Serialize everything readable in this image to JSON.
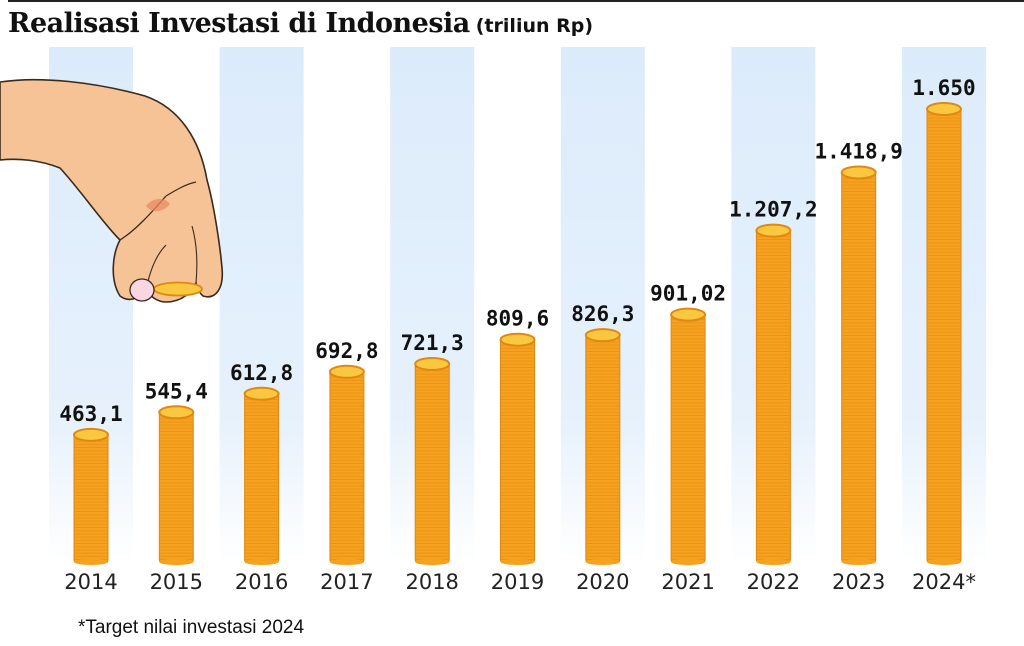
{
  "title": "Realisasi Investasi di Indonesia",
  "unit": "(triliun Rp)",
  "footnote": "*Target nilai investasi 2024",
  "colors": {
    "band": "#dcebfb",
    "coin_body": "#f6a21e",
    "coin_top": "#f9c740",
    "coin_rim": "#e0880f",
    "skin": "#f6c396"
  },
  "illustration": {
    "icon": "hand-holding-coin-icon"
  },
  "chart_data": {
    "type": "bar",
    "title": "Realisasi Investasi di Indonesia",
    "ylabel": "triliun Rp",
    "ylim": [
      0,
      1650
    ],
    "grid": false,
    "categories": [
      "2014",
      "2015",
      "2016",
      "2017",
      "2018",
      "2019",
      "2020",
      "2021",
      "2022",
      "2023",
      "2024*"
    ],
    "values": [
      463.1,
      545.4,
      612.8,
      692.8,
      721.3,
      809.6,
      826.3,
      901.02,
      1207.2,
      1418.9,
      1650
    ],
    "value_labels": [
      "463,1",
      "545,4",
      "612,8",
      "692,8",
      "721,3",
      "809,6",
      "826,3",
      "901,02",
      "1.207,2",
      "1.418,9",
      "1.650"
    ]
  }
}
